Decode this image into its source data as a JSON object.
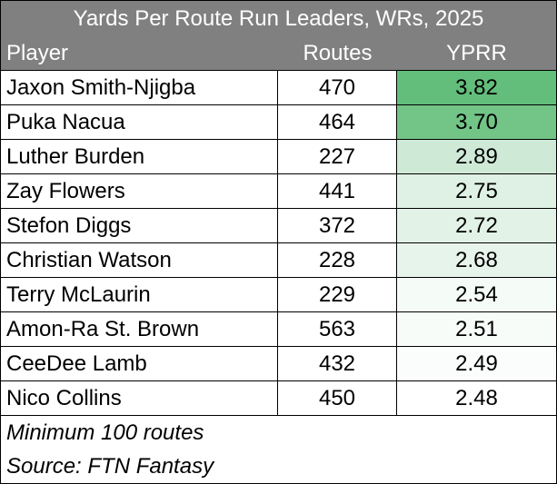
{
  "chart_data": {
    "type": "table",
    "title": "Yards Per Route Run Leaders, WRs, 2025",
    "columns": [
      "Player",
      "Routes",
      "YPRR"
    ],
    "rows": [
      {
        "player": "Jaxon Smith-Njigba",
        "routes": "470",
        "yprr": "3.82",
        "fill": "#63be7b"
      },
      {
        "player": "Puka Nacua",
        "routes": "464",
        "yprr": "3.70",
        "fill": "#72c487"
      },
      {
        "player": "Luther Burden",
        "routes": "227",
        "yprr": "2.89",
        "fill": "#cfe9d7"
      },
      {
        "player": "Zay Flowers",
        "routes": "441",
        "yprr": "2.75",
        "fill": "#dff0e4"
      },
      {
        "player": "Stefon Diggs",
        "routes": "372",
        "yprr": "2.72",
        "fill": "#e2f2e7"
      },
      {
        "player": "Christian Watson",
        "routes": "228",
        "yprr": "2.68",
        "fill": "#e7f4eb"
      },
      {
        "player": "Terry McLaurin",
        "routes": "229",
        "yprr": "2.54",
        "fill": "#f5fbf7"
      },
      {
        "player": "Amon-Ra St. Brown",
        "routes": "563",
        "yprr": "2.51",
        "fill": "#f7fcf9"
      },
      {
        "player": "CeeDee Lamb",
        "routes": "432",
        "yprr": "2.49",
        "fill": "#fafdfb"
      },
      {
        "player": "Nico Collins",
        "routes": "450",
        "yprr": "2.48",
        "fill": "#ffffff"
      }
    ],
    "notes": [
      "Minimum 100 routes",
      "Source:  FTN Fantasy"
    ]
  }
}
